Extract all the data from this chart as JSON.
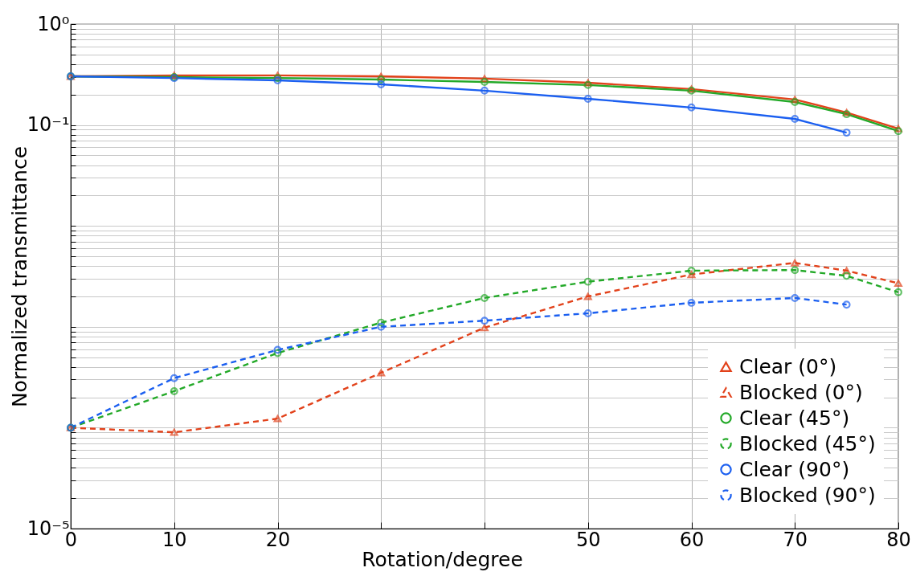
{
  "chart_data": {
    "type": "line",
    "xlabel": "Rotation/degree",
    "ylabel": "Normalized transmittance",
    "x": [
      0,
      10,
      20,
      30,
      40,
      50,
      60,
      70,
      75,
      80
    ],
    "series": [
      {
        "name": "Clear (0°)",
        "color": "#e2421b",
        "marker": "triangle",
        "line_style": "solid",
        "values": [
          0.304,
          0.31,
          0.31,
          0.304,
          0.288,
          0.262,
          0.227,
          0.179,
          0.133,
          0.092
        ]
      },
      {
        "name": "Blocked (0°)",
        "color": "#e2421b",
        "marker": "triangle",
        "line_style": "dashed",
        "values": [
          0.0001,
          9e-05,
          0.000123,
          0.00035,
          0.00098,
          0.002,
          0.0033,
          0.0043,
          0.0036,
          0.0027
        ]
      },
      {
        "name": "Clear (45°)",
        "color": "#23a928",
        "marker": "circle",
        "line_style": "solid",
        "values": [
          0.304,
          0.298,
          0.292,
          0.282,
          0.267,
          0.249,
          0.219,
          0.169,
          0.128,
          0.087
        ]
      },
      {
        "name": "Blocked (45°)",
        "color": "#23a928",
        "marker": "circle",
        "line_style": "dashed",
        "values": [
          0.0001,
          0.00023,
          0.00055,
          0.0011,
          0.00193,
          0.0028,
          0.0036,
          0.00365,
          0.0032,
          0.0022
        ]
      },
      {
        "name": "Clear (90°)",
        "color": "#1b5ff0",
        "marker": "circle",
        "line_style": "solid",
        "values": [
          0.304,
          0.292,
          0.277,
          0.253,
          0.219,
          0.182,
          0.149,
          0.115,
          0.084,
          null
        ]
      },
      {
        "name": "Blocked (90°)",
        "color": "#1b5ff0",
        "marker": "circle",
        "line_style": "dashed",
        "values": [
          0.0001,
          0.00031,
          0.00059,
          0.001,
          0.00115,
          0.00136,
          0.00173,
          0.00193,
          0.00166,
          null
        ]
      }
    ],
    "xlim": [
      0,
      80
    ],
    "xticks": [
      0,
      10,
      20,
      {
        "value": 30,
        "label": null
      },
      {
        "value": 40,
        "label": null
      },
      50,
      60,
      70,
      80
    ],
    "ylim": [
      1e-05,
      1
    ],
    "log": true,
    "yticks": [
      {
        "value": 1,
        "label": "10⁰"
      },
      {
        "value": 0.1,
        "label": "10⁻¹"
      },
      {
        "value": 0.01,
        "label": null
      },
      {
        "value": 0.001,
        "label": null
      },
      {
        "value": 0.0001,
        "label": null
      },
      {
        "value": 1e-05,
        "label": "10⁻⁵"
      },
      {
        "value": 2e-05,
        "label": null
      },
      {
        "value": 3e-05,
        "label": null
      },
      {
        "value": 4e-05,
        "label": null
      },
      {
        "value": 5e-05,
        "label": null
      },
      {
        "value": 6e-05,
        "label": null
      },
      {
        "value": 7e-05,
        "label": null
      },
      {
        "value": 8e-05,
        "label": null
      },
      {
        "value": 9e-05,
        "label": null
      },
      {
        "value": 0.0002,
        "label": null
      },
      {
        "value": 0.0003,
        "label": null
      },
      {
        "value": 0.0004,
        "label": null
      },
      {
        "value": 0.0005,
        "label": null
      },
      {
        "value": 0.0006,
        "label": null
      },
      {
        "value": 0.0007,
        "label": null
      },
      {
        "value": 0.0008,
        "label": null
      },
      {
        "value": 0.0009,
        "label": null
      },
      {
        "value": 0.002,
        "label": null
      },
      {
        "value": 0.003,
        "label": null
      },
      {
        "value": 0.004,
        "label": null
      },
      {
        "value": 0.005,
        "label": null
      },
      {
        "value": 0.006,
        "label": null
      },
      {
        "value": 0.007,
        "label": null
      },
      {
        "value": 0.008,
        "label": null
      },
      {
        "value": 0.009,
        "label": null
      },
      {
        "value": 0.02,
        "label": null
      },
      {
        "value": 0.03,
        "label": null
      },
      {
        "value": 0.04,
        "label": null
      },
      {
        "value": 0.05,
        "label": null
      },
      {
        "value": 0.06,
        "label": null
      },
      {
        "value": 0.07,
        "label": null
      },
      {
        "value": 0.08,
        "label": null
      },
      {
        "value": 0.09,
        "label": null
      },
      {
        "value": 0.2,
        "label": null
      },
      {
        "value": 0.3,
        "label": null
      },
      {
        "value": 0.4,
        "label": null
      },
      {
        "value": 0.5,
        "label": null
      },
      {
        "value": 0.6,
        "label": null
      },
      {
        "value": 0.7,
        "label": null
      },
      {
        "value": 0.8,
        "label": null
      },
      {
        "value": 0.9,
        "label": null
      }
    ],
    "grid": true,
    "legend": "bottom right"
  }
}
